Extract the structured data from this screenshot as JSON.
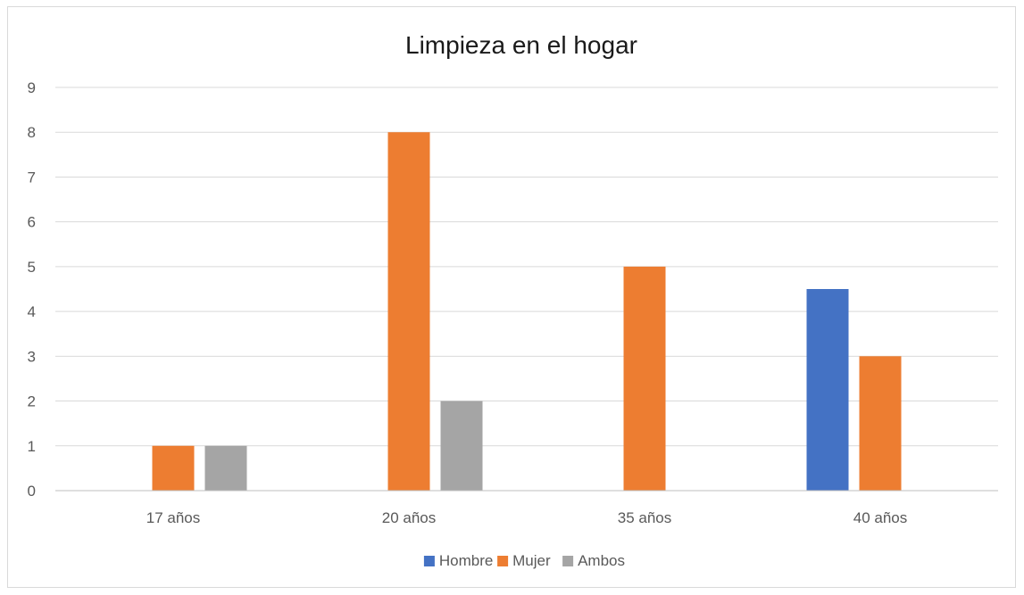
{
  "chart_data": {
    "type": "bar",
    "title": "Limpieza en el hogar",
    "categories": [
      "17 años",
      "20 años",
      "35 años",
      "40 años"
    ],
    "series": [
      {
        "name": "Hombre",
        "color": "#4472c4",
        "values": [
          null,
          null,
          null,
          4.5
        ]
      },
      {
        "name": "Mujer",
        "color": "#ed7d31",
        "values": [
          1,
          8,
          5,
          3
        ]
      },
      {
        "name": "Ambos",
        "color": "#a5a5a5",
        "values": [
          1,
          2,
          null,
          null
        ]
      }
    ],
    "y_ticks": [
      "0",
      "1",
      "2",
      "3",
      "4",
      "5",
      "6",
      "7",
      "8",
      "9"
    ],
    "ylim": [
      0,
      9
    ],
    "xlabel": "",
    "ylabel": "",
    "grid": true,
    "legend_position": "bottom"
  }
}
